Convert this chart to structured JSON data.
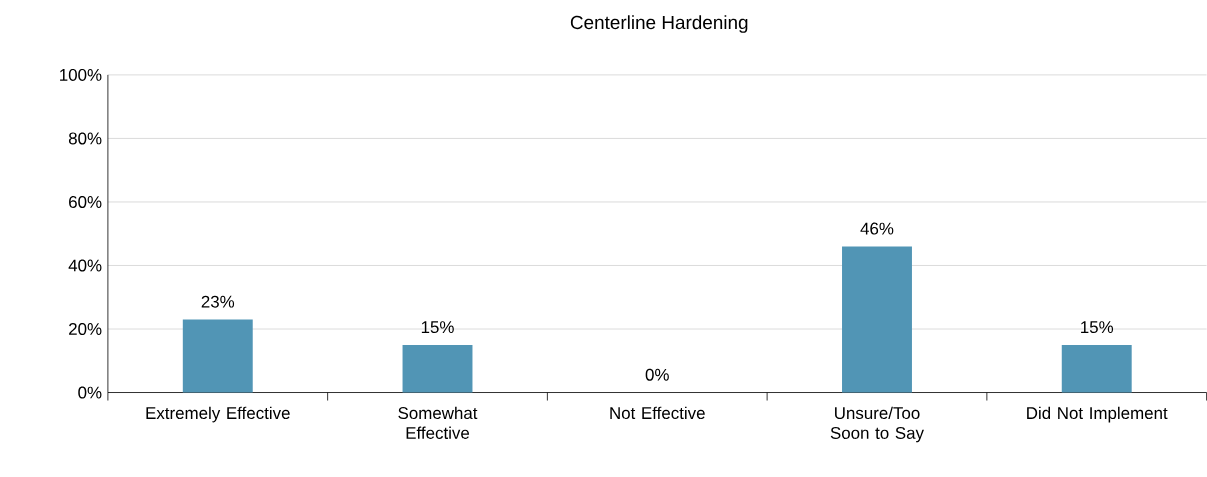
{
  "chart_data": {
    "type": "bar",
    "title": "Centerline Hardening",
    "categories": [
      "Extremely Effective",
      "Somewhat Effective",
      "Not Effective",
      "Unsure/Too Soon to Say",
      "Did Not Implement"
    ],
    "values": [
      23,
      15,
      0,
      46,
      15
    ],
    "value_labels": [
      "23%",
      "15%",
      "0%",
      "46%",
      "15%"
    ],
    "color": "#5195b5",
    "ylim": [
      0,
      100
    ],
    "yticks": [
      {
        "value": 0,
        "label": "0%"
      },
      {
        "value": 20,
        "label": "20%"
      },
      {
        "value": 40,
        "label": "40%"
      },
      {
        "value": 60,
        "label": "60%"
      },
      {
        "value": 80,
        "label": "80%"
      },
      {
        "value": 100,
        "label": "100%"
      }
    ],
    "grid": "y"
  }
}
